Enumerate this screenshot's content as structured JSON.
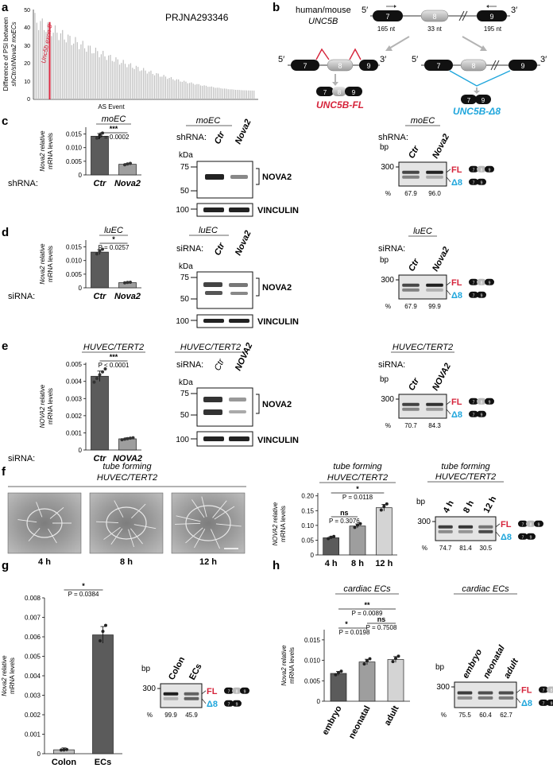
{
  "panels": {
    "a": "a",
    "b": "b",
    "c": "c",
    "d": "d",
    "e": "e",
    "f": "f",
    "g": "g",
    "h": "h"
  },
  "panel_a": {
    "project": "PRJNA293346",
    "ylabel_line1": "Difference of PSI between",
    "ylabel_line2": "shCtr/shNova2 moECs",
    "xlabel": "AS Event",
    "highlight_label": "Unc5b exon 8",
    "highlight_color": "#d6243b",
    "bar_color": "#bfbfbf"
  },
  "panel_b": {
    "gene_line1": "human/mouse",
    "gene_line2": "UNC5B",
    "five_prime": "5′",
    "three_prime": "3′",
    "exon7": "7",
    "exon8": "8",
    "exon9": "9",
    "len7": "165 nt",
    "len8": "33 nt",
    "len9": "195 nt",
    "fl_label": "UNC5B-FL",
    "d8_label": "UNC5B-Δ8",
    "fl_color": "#d6243b",
    "d8_color": "#1fa6dc"
  },
  "common": {
    "fl": "FL",
    "d8": "Δ8",
    "kda": "kDa",
    "bp": "bp",
    "pct": "%",
    "nova2_band": "NOVA2",
    "vinculin": "VINCULIN",
    "shrna": "shRNA:",
    "sirna": "siRNA:",
    "ylabel_nova2_mouse": "Nova2 relative",
    "ylabel_nova2_human": "NOVA2 relative",
    "ylabel_line2": "mRNA levels",
    "bp300": "300",
    "kda75": "75",
    "kda50": "50",
    "kda100": "100"
  },
  "panel_c": {
    "cell": "moEC",
    "stars": "***",
    "pval": "P = 0.0002",
    "groups": [
      "Ctr",
      "Nova2"
    ],
    "values": [
      0.0142,
      0.0039
    ],
    "ylim": [
      0,
      0.0175
    ],
    "yticks": [
      "0.015",
      "0.010",
      "0.005",
      "0"
    ],
    "psi": [
      "67.9",
      "96.0"
    ]
  },
  "panel_d": {
    "cell": "luEC",
    "stars": "*",
    "pval": "P = 0.0257",
    "groups": [
      "Ctr",
      "Nova2"
    ],
    "values": [
      0.0131,
      0.0019
    ],
    "ylim": [
      0,
      0.0175
    ],
    "yticks": [
      "0.015",
      "0.010",
      "0.005",
      "0"
    ],
    "psi": [
      "67.9",
      "99.9"
    ]
  },
  "panel_e": {
    "cell": "HUVEC/TERT2",
    "stars": "***",
    "pval": "P < 0.0001",
    "groups": [
      "Ctr",
      "NOVA2"
    ],
    "values": [
      0.0043,
      0.00065
    ],
    "ylim": [
      0,
      0.0051
    ],
    "yticks": [
      "0.005",
      "0.004",
      "0.003",
      "0.002",
      "0.001",
      "0"
    ],
    "psi": [
      "70.7",
      "84.3"
    ]
  },
  "panel_f": {
    "title_line1": "tube forming",
    "title_line2": "HUVEC/TERT2",
    "times": [
      "4 h",
      "8 h",
      "12 h"
    ],
    "values": [
      0.058,
      0.098,
      0.16
    ],
    "ylim": [
      0,
      0.21
    ],
    "yticks": [
      "0.20",
      "0.15",
      "0.10",
      "0.05",
      "0"
    ],
    "p1_label": "ns",
    "p1": "P = 0.3076",
    "p2_label": "*",
    "p2": "P = 0.0118",
    "psi": [
      "74.7",
      "81.4",
      "30.5"
    ]
  },
  "panel_g": {
    "stars": "*",
    "pval": "P = 0.0384",
    "groups": [
      "Colon",
      "ECs"
    ],
    "values": [
      0.0002,
      0.0061
    ],
    "ylim": [
      0,
      0.008
    ],
    "yticks": [
      "0.008",
      "0.007",
      "0.006",
      "0.005",
      "0.004",
      "0.003",
      "0.002",
      "0.001",
      "0"
    ],
    "psi": [
      "99.9",
      "45.9"
    ]
  },
  "panel_h": {
    "cell": "cardiac ECs",
    "groups": [
      "embryo",
      "neonatal",
      "adult"
    ],
    "values": [
      0.0068,
      0.0096,
      0.0102
    ],
    "ylim": [
      0,
      0.0175
    ],
    "yticks": [
      "0.015",
      "0.010",
      "0.005",
      "0"
    ],
    "c1": "**",
    "p_c1": "P = 0.0089",
    "c2": "ns",
    "p_c2": "P = 0.7508",
    "c3": "*",
    "p_c3": "P = 0.0198",
    "psi": [
      "75.5",
      "60.4",
      "62.7"
    ]
  }
}
